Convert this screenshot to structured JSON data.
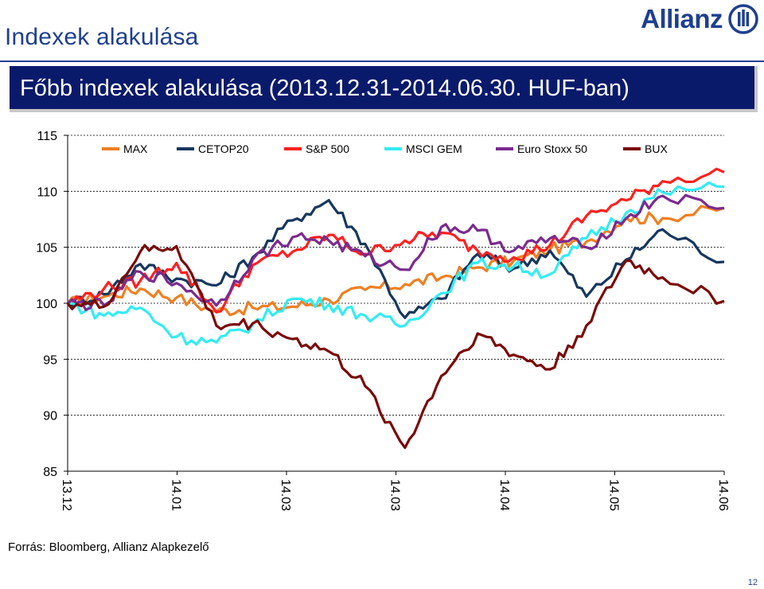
{
  "header": {
    "title": "Indexek alakulása",
    "logo_text": "Allianz"
  },
  "banner": {
    "subtitle": "Főbb indexek alakulása (2013.12.31-2014.06.30. HUF-ban)"
  },
  "footer": {
    "source": "Forrás: Bloomberg, Allianz Alapkezelő",
    "page_number": "12"
  },
  "colors": {
    "brand": "#1f3f8f",
    "banner_bg": "#0a1a6b",
    "MAX": "#f07f22",
    "CETOP20": "#17375e",
    "S&P 500": "#ff2020",
    "MSCI GEM": "#33ecf3",
    "Euro Stoxx 50": "#7b2a8e",
    "BUX": "#7a0a0a"
  },
  "chart_data": {
    "type": "line",
    "title": "Főbb indexek alakulása (2013.12.31-2014.06.30. HUF-ban)",
    "xlabel": "",
    "ylabel": "",
    "ylim": [
      85,
      115
    ],
    "yticks": [
      85,
      90,
      95,
      100,
      105,
      110,
      115
    ],
    "grid": "horizontal-dashed",
    "legend": "top",
    "x_tick_labels": [
      "13.12",
      "14.01",
      "14.03",
      "14.03",
      "14.04",
      "14.05",
      "14.06"
    ],
    "x": [
      "2013-12-31",
      "2014-01-10",
      "2014-01-20",
      "2014-01-30",
      "2014-02-10",
      "2014-02-20",
      "2014-03-03",
      "2014-03-13",
      "2014-03-23",
      "2014-04-03",
      "2014-04-13",
      "2014-04-23",
      "2014-05-03",
      "2014-05-13",
      "2014-05-23",
      "2014-06-03",
      "2014-06-13",
      "2014-06-30"
    ],
    "series": [
      {
        "name": "MAX",
        "values": [
          100,
          100.6,
          101.3,
          100.5,
          99.3,
          99.6,
          99.7,
          100.3,
          101.2,
          101.7,
          102.3,
          103.2,
          103.8,
          104.8,
          105.5,
          107.6,
          107.6,
          108.5
        ]
      },
      {
        "name": "CETOP20",
        "values": [
          100,
          100.8,
          103.5,
          102.2,
          101.6,
          104.1,
          107.4,
          109.2,
          105.3,
          98.7,
          100.4,
          104.4,
          103.1,
          104.7,
          100.6,
          103.9,
          106.6,
          103.7
        ]
      },
      {
        "name": "S&P 500",
        "values": [
          100,
          101.3,
          102.0,
          103.6,
          99.2,
          103.4,
          104.6,
          106.1,
          104.4,
          105.6,
          106.3,
          104.7,
          104.1,
          105.2,
          107.8,
          109.2,
          110.9,
          111.7
        ]
      },
      {
        "name": "MSCI GEM",
        "values": [
          100,
          98.9,
          99.6,
          97.0,
          96.5,
          98.1,
          100.4,
          99.9,
          98.9,
          98.0,
          100.9,
          103.6,
          103.3,
          102.6,
          105.8,
          108.1,
          109.9,
          110.4
        ]
      },
      {
        "name": "Euro Stoxx 50",
        "values": [
          100,
          99.8,
          102.8,
          101.8,
          99.8,
          103.9,
          105.9,
          105.6,
          104.2,
          103.0,
          106.8,
          106.5,
          104.7,
          105.8,
          105.0,
          107.6,
          109.6,
          108.5
        ]
      },
      {
        "name": "BUX",
        "values": [
          100,
          99.7,
          104.6,
          105.1,
          98.0,
          98.2,
          96.8,
          95.7,
          92.6,
          87.1,
          93.5,
          97.3,
          95.4,
          94.1,
          98.0,
          103.8,
          102.3,
          100.2
        ]
      }
    ]
  }
}
